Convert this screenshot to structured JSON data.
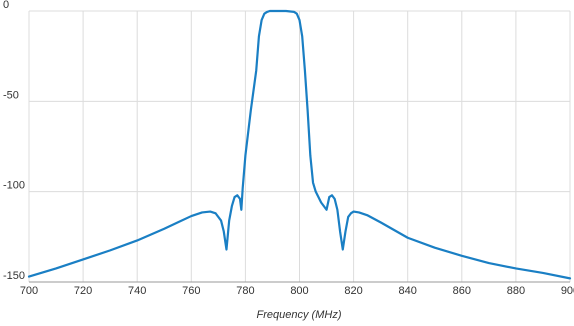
{
  "chart_data": {
    "type": "line",
    "title": "",
    "xlabel": "Frequency (MHz)",
    "ylabel": "",
    "xlim": [
      700,
      900
    ],
    "ylim": [
      -150,
      0
    ],
    "xticks": [
      700,
      720,
      740,
      760,
      780,
      800,
      820,
      840,
      860,
      880,
      900
    ],
    "yticks": [
      0,
      -50,
      -100,
      -150
    ],
    "xtick_labels": [
      "700",
      "720",
      "740",
      "760",
      "780",
      "800",
      "820",
      "840",
      "860",
      "880",
      "900"
    ],
    "ytick_labels": [
      "0",
      "-50",
      "-100",
      "-150"
    ],
    "grid": true,
    "legend": "none",
    "series": [
      {
        "color": "#1a7fc4",
        "x": [
          700,
          710,
          720,
          730,
          740,
          750,
          755,
          760,
          764,
          767,
          769,
          771,
          772,
          773,
          774,
          775,
          776,
          777,
          778,
          778.5,
          779,
          780,
          782,
          784,
          785,
          786,
          787,
          788,
          789,
          790,
          792,
          795,
          798,
          799,
          800,
          801,
          802,
          803,
          804,
          805,
          806,
          808,
          810,
          811,
          812,
          813,
          814,
          815,
          816,
          817,
          818,
          819,
          820,
          822,
          825,
          830,
          840,
          850,
          860,
          870,
          880,
          890,
          900
        ],
        "y": [
          -147,
          -142.5,
          -137.5,
          -132.5,
          -127,
          -120.5,
          -117,
          -113.5,
          -111.5,
          -111,
          -112,
          -116,
          -122,
          -132,
          -116,
          -108,
          -103,
          -102,
          -104,
          -110,
          -98,
          -80,
          -55,
          -33,
          -14,
          -5,
          -1.5,
          -0.5,
          0,
          0,
          0,
          0,
          -0.5,
          -1.5,
          -5,
          -14,
          -33,
          -55,
          -80,
          -95,
          -100,
          -106,
          -110,
          -103,
          -102,
          -104,
          -110,
          -122,
          -132,
          -122,
          -114,
          -112,
          -111,
          -111.5,
          -113,
          -117,
          -125.5,
          -131,
          -135.5,
          -139.5,
          -142.5,
          -145,
          -148
        ]
      }
    ]
  }
}
